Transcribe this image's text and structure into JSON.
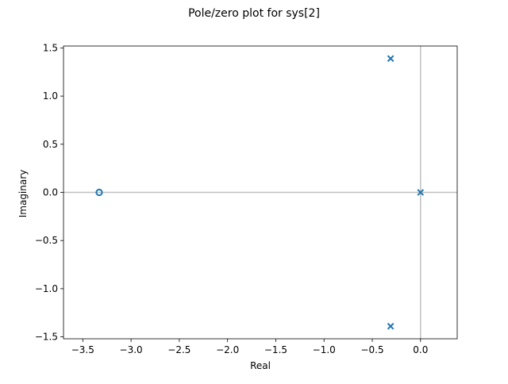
{
  "chart_data": {
    "type": "scatter",
    "title": "Pole/zero plot for sys[2]",
    "xlabel": "Real",
    "ylabel": "Imaginary",
    "xlim": [
      -3.7,
      0.38
    ],
    "ylim": [
      -1.52,
      1.52
    ],
    "xticks": [
      -3.5,
      -3.0,
      -2.5,
      -2.0,
      -1.5,
      -1.0,
      -0.5,
      0.0
    ],
    "xtick_labels": [
      "−3.5",
      "−3.0",
      "−2.5",
      "−2.0",
      "−1.5",
      "−1.0",
      "−0.5",
      "0.0"
    ],
    "yticks": [
      1.5,
      1.0,
      0.5,
      0.0,
      -0.5,
      -1.0,
      -1.5
    ],
    "ytick_labels": [
      "1.5",
      "1.0",
      "0.5",
      "0.0",
      "−0.5",
      "−1.0",
      "−1.5"
    ],
    "grid": false,
    "reference_lines": {
      "x": 0,
      "y": 0
    },
    "series": [
      {
        "marker": "x",
        "points": [
          {
            "x": -0.31,
            "y": 1.39
          },
          {
            "x": 0.0,
            "y": 0.0
          },
          {
            "x": -0.31,
            "y": -1.39
          }
        ]
      },
      {
        "marker": "o",
        "points": [
          {
            "x": -3.33,
            "y": 0.0
          }
        ]
      }
    ],
    "colors": {
      "marker": "#1f77b4",
      "reference": "#c0c0c0",
      "axis": "#000000"
    }
  }
}
